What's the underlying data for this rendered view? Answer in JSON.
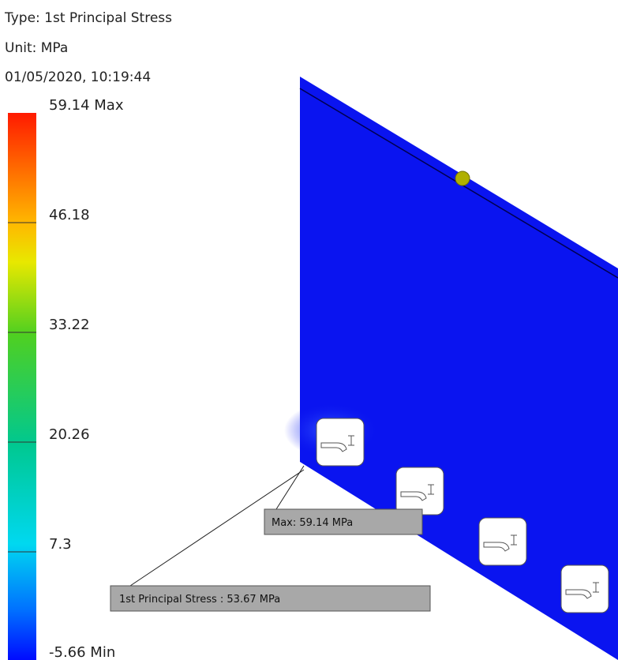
{
  "header": {
    "type": "Type: 1st Principal Stress",
    "unit": "Unit: MPa",
    "timestamp": "01/05/2020, 10:19:44"
  },
  "legend": {
    "labels": [
      "59.14 Max",
      "46.18",
      "33.22",
      "20.26",
      "7.3",
      "-5.66 Min"
    ]
  },
  "probes": [
    "Max: 59.14 MPa",
    "1st Principal Stress : 53.67 MPa"
  ]
}
